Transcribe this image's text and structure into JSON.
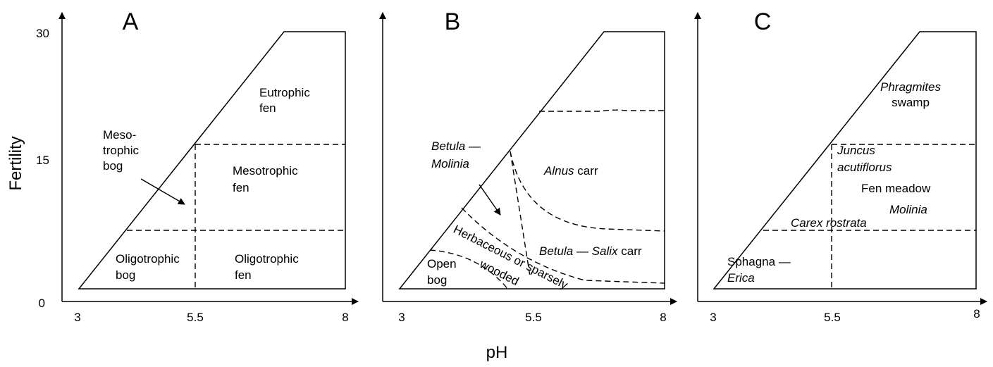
{
  "axes": {
    "y_label": "Fertility",
    "x_label": "pH"
  },
  "panels": [
    {
      "label": "A",
      "y_ticks": [
        "30",
        "15",
        "0"
      ],
      "x_ticks": [
        "3",
        "5.5",
        "8"
      ],
      "texts": [
        "Eutrophic",
        "fen",
        "Meso-",
        "trophic",
        "bog",
        "Mesotrophic",
        "fen",
        "Oligotrophic",
        "bog",
        "Oligotrophic",
        "fen"
      ]
    },
    {
      "label": "B",
      "x_ticks": [
        "3",
        "5.5",
        "8"
      ],
      "texts": [
        "Betula",
        "—",
        "Molinia",
        "Alnus",
        "carr",
        "Betula",
        "—",
        "Salix",
        "carr",
        "Herbaceous or sparsely",
        "wooded",
        "Open",
        "bog"
      ]
    },
    {
      "label": "C",
      "x_ticks": [
        "3",
        "5.5",
        "8"
      ],
      "texts": [
        "Phragmites",
        "swamp",
        "Juncus",
        "acutiflorus",
        "Fen meadow",
        "Molinia",
        "Carex rostrata",
        "Sphagna",
        "—",
        "Erica"
      ]
    }
  ]
}
